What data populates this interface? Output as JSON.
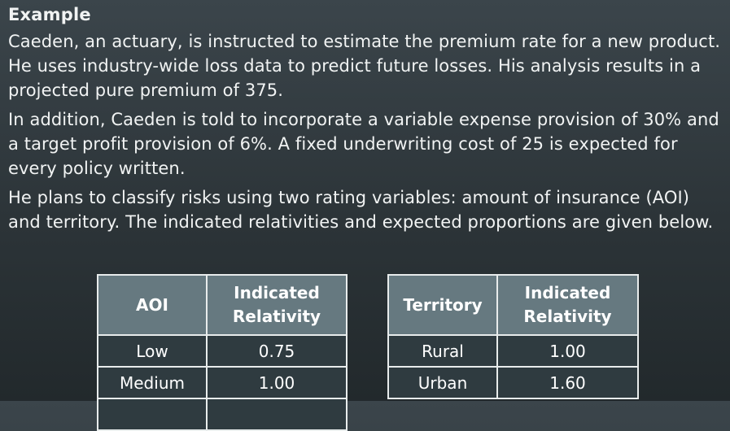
{
  "heading": "Example",
  "paragraphs": [
    "Caeden, an actuary, is instructed to estimate the premium rate for a new product. He uses industry-wide loss data to predict future losses. His analysis results in a projected pure premium of 375.",
    "In addition, Caeden is told to incorporate a variable expense provision of 30% and a target profit provision of 6%. A fixed underwriting cost of 25 is expected for every policy written.",
    "He plans to classify risks using two rating variables: amount of insurance (AOI) and territory. The indicated relativities and expected proportions are given below."
  ],
  "aoi_table": {
    "header_col1": "AOI",
    "header_col2_line1": "Indicated",
    "header_col2_line2": "Relativity",
    "rows": [
      {
        "level": "Low",
        "relativity": "0.75"
      },
      {
        "level": "Medium",
        "relativity": "1.00"
      }
    ]
  },
  "territory_table": {
    "header_col1": "Territory",
    "header_col2_line1": "Indicated",
    "header_col2_line2": "Relativity",
    "rows": [
      {
        "level": "Rural",
        "relativity": "1.00"
      },
      {
        "level": "Urban",
        "relativity": "1.60"
      }
    ]
  }
}
